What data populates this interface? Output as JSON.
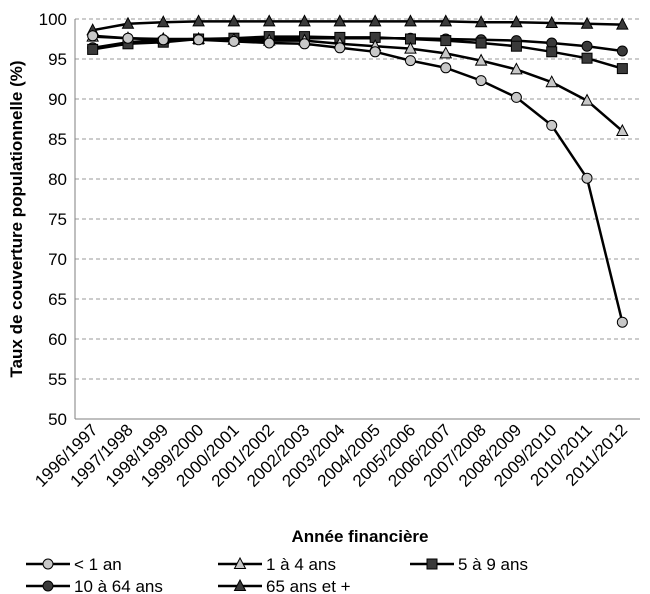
{
  "chart_data": {
    "type": "line",
    "xlabel": "Année financière",
    "ylabel": "Taux de couverture populationnelle (%)",
    "ylim": [
      50,
      100
    ],
    "yticks": [
      50,
      55,
      60,
      65,
      70,
      75,
      80,
      85,
      90,
      95,
      100
    ],
    "grid": "horizontal dashed",
    "legend_position": "bottom",
    "categories": [
      "1996/1997",
      "1997/1998",
      "1998/1999",
      "1999/2000",
      "2000/2001",
      "2001/2002",
      "2002/2003",
      "2003/2004",
      "2004/2005",
      "2005/2006",
      "2006/2007",
      "2007/2008",
      "2008/2009",
      "2009/2010",
      "2010/2011",
      "2011/2012"
    ],
    "series": [
      {
        "name": "< 1 an",
        "marker": "circle",
        "marker_fill": "#c8c8c8",
        "values": [
          97.9,
          97.6,
          97.4,
          97.4,
          97.2,
          97.0,
          96.9,
          96.4,
          95.9,
          94.8,
          93.9,
          92.3,
          90.2,
          86.7,
          80.1,
          62.1
        ]
      },
      {
        "name": "1 à 4 ans",
        "marker": "triangle",
        "marker_fill": "#c8c8c8",
        "values": [
          97.8,
          97.6,
          97.5,
          97.5,
          97.4,
          97.3,
          97.3,
          96.9,
          96.6,
          96.3,
          95.7,
          94.8,
          93.7,
          92.1,
          89.8,
          86.0
        ]
      },
      {
        "name": "5 à 9 ans",
        "marker": "square",
        "marker_fill": "#3a3a3a",
        "values": [
          96.2,
          96.9,
          97.1,
          97.5,
          97.6,
          97.8,
          97.8,
          97.7,
          97.7,
          97.5,
          97.3,
          97.0,
          96.6,
          95.9,
          95.1,
          93.8
        ]
      },
      {
        "name": "10 à 64 ans",
        "marker": "circle",
        "marker_fill": "#3a3a3a",
        "values": [
          96.4,
          97.1,
          97.4,
          97.5,
          97.5,
          97.6,
          97.6,
          97.6,
          97.6,
          97.6,
          97.5,
          97.4,
          97.3,
          97.0,
          96.6,
          96.0
        ]
      },
      {
        "name": "65 ans et +",
        "marker": "triangle",
        "marker_fill": "#3a3a3a",
        "values": [
          98.6,
          99.4,
          99.6,
          99.7,
          99.7,
          99.7,
          99.7,
          99.7,
          99.7,
          99.7,
          99.7,
          99.6,
          99.6,
          99.5,
          99.4,
          99.3
        ]
      }
    ]
  }
}
